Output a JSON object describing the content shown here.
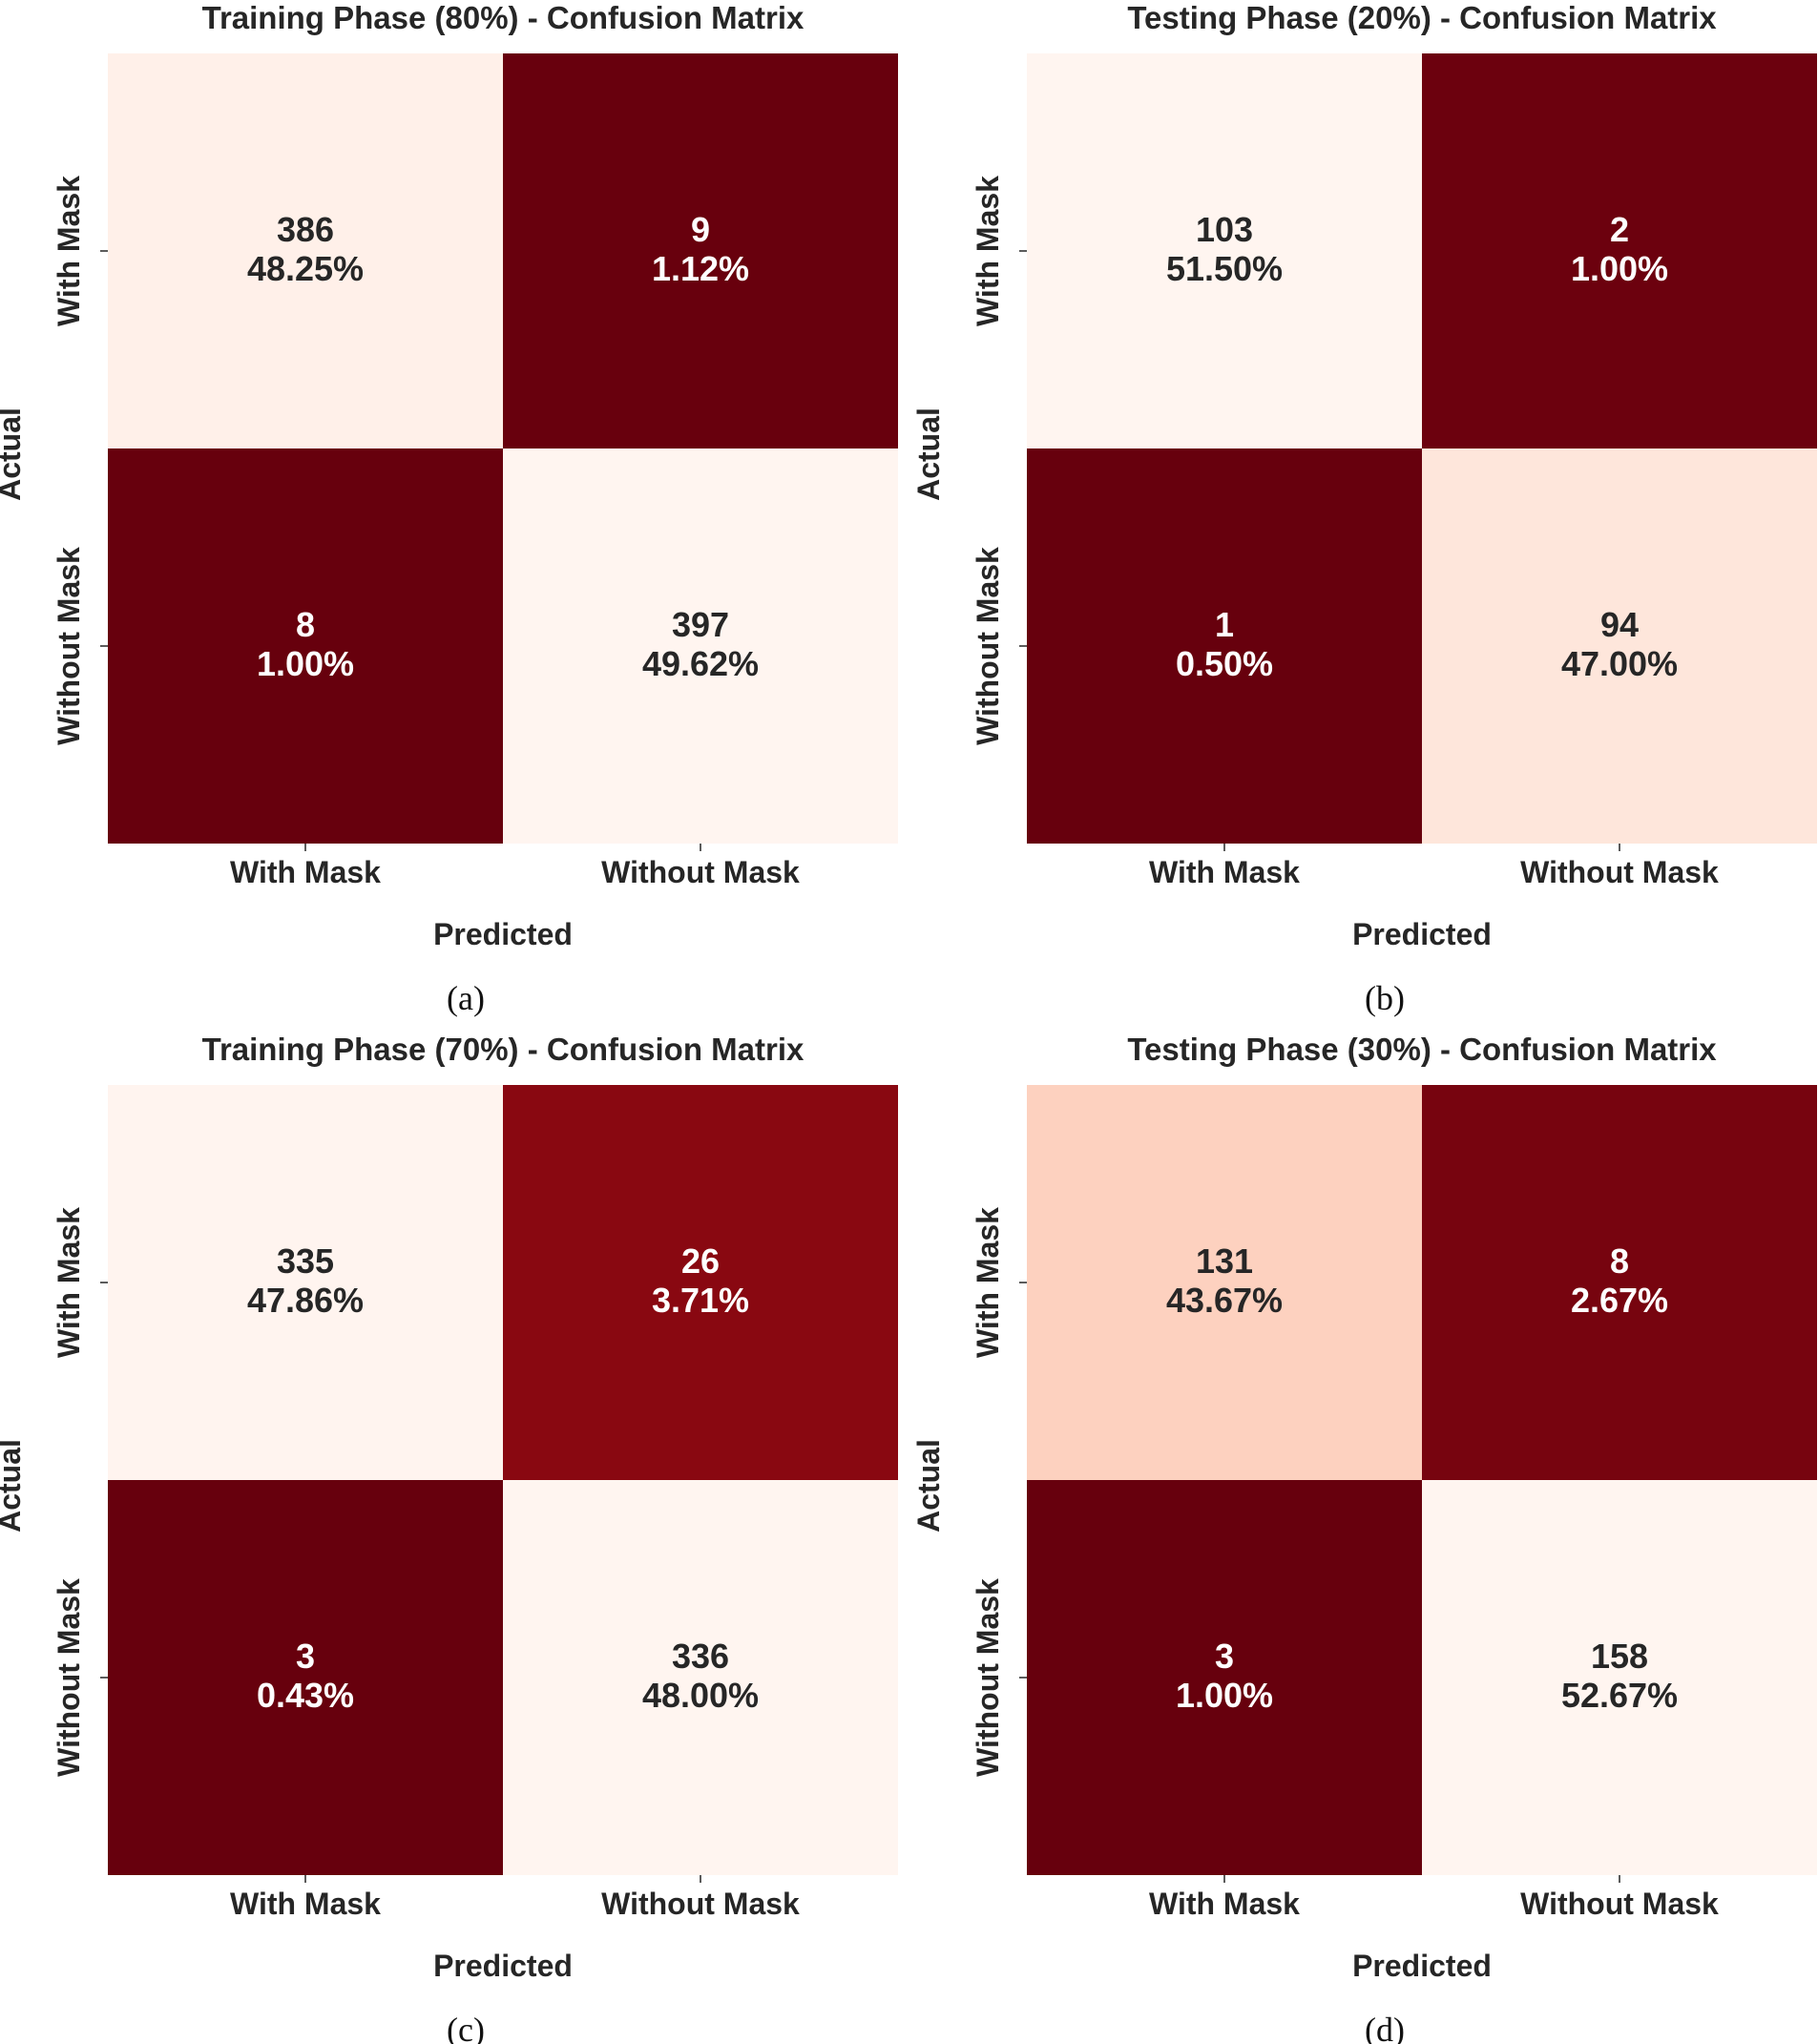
{
  "chart_data": [
    {
      "type": "heatmap",
      "panel_label": "(a)",
      "title": "Training Phase (80%) - Confusion Matrix",
      "xlabel": "Predicted",
      "ylabel": "Actual",
      "x_categories": [
        "With Mask",
        "Without Mask"
      ],
      "y_categories": [
        "With Mask",
        "Without Mask"
      ],
      "counts": [
        [
          386,
          9
        ],
        [
          8,
          397
        ]
      ],
      "percentages": [
        [
          "48.25%",
          "1.12%"
        ],
        [
          "1.00%",
          "49.62%"
        ]
      ],
      "colormap": "Reds"
    },
    {
      "type": "heatmap",
      "panel_label": "(b)",
      "title": "Testing Phase (20%) - Confusion Matrix",
      "xlabel": "Predicted",
      "ylabel": "Actual",
      "x_categories": [
        "With Mask",
        "Without Mask"
      ],
      "y_categories": [
        "With Mask",
        "Without Mask"
      ],
      "counts": [
        [
          103,
          2
        ],
        [
          1,
          94
        ]
      ],
      "percentages": [
        [
          "51.50%",
          "1.00%"
        ],
        [
          "0.50%",
          "47.00%"
        ]
      ],
      "colormap": "Reds"
    },
    {
      "type": "heatmap",
      "panel_label": "(c)",
      "title": "Training Phase (70%) - Confusion Matrix",
      "xlabel": "Predicted",
      "ylabel": "Actual",
      "x_categories": [
        "With Mask",
        "Without Mask"
      ],
      "y_categories": [
        "With Mask",
        "Without Mask"
      ],
      "counts": [
        [
          335,
          26
        ],
        [
          3,
          336
        ]
      ],
      "percentages": [
        [
          "47.86%",
          "3.71%"
        ],
        [
          "0.43%",
          "48.00%"
        ]
      ],
      "colormap": "Reds"
    },
    {
      "type": "heatmap",
      "panel_label": "(d)",
      "title": "Testing Phase (30%) - Confusion Matrix",
      "xlabel": "Predicted",
      "ylabel": "Actual",
      "x_categories": [
        "With Mask",
        "Without Mask"
      ],
      "y_categories": [
        "With Mask",
        "Without Mask"
      ],
      "counts": [
        [
          131,
          8
        ],
        [
          3,
          158
        ]
      ],
      "percentages": [
        [
          "43.67%",
          "2.67%"
        ],
        [
          "1.00%",
          "52.67%"
        ]
      ],
      "colormap": "Reds"
    }
  ]
}
